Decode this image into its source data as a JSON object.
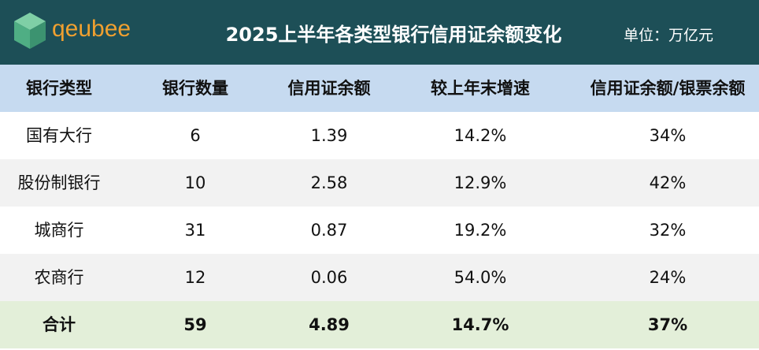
{
  "header": {
    "logo": "qeubee",
    "title": "2025上半年各类型银行信用证余额变化",
    "unit": "单位：万亿元"
  },
  "table": {
    "columns": [
      "银行类型",
      "银行数量",
      "信用证余额",
      "较上年末增速",
      "信用证余额/银票余额"
    ],
    "rows": [
      [
        "国有大行",
        "6",
        "1.39",
        "14.2%",
        "34%"
      ],
      [
        "股份制银行",
        "10",
        "2.58",
        "12.9%",
        "42%"
      ],
      [
        "城商行",
        "31",
        "0.87",
        "19.2%",
        "32%"
      ],
      [
        "农商行",
        "12",
        "0.06",
        "54.0%",
        "24%"
      ]
    ],
    "total": [
      "合计",
      "59",
      "4.89",
      "14.7%",
      "37%"
    ]
  }
}
